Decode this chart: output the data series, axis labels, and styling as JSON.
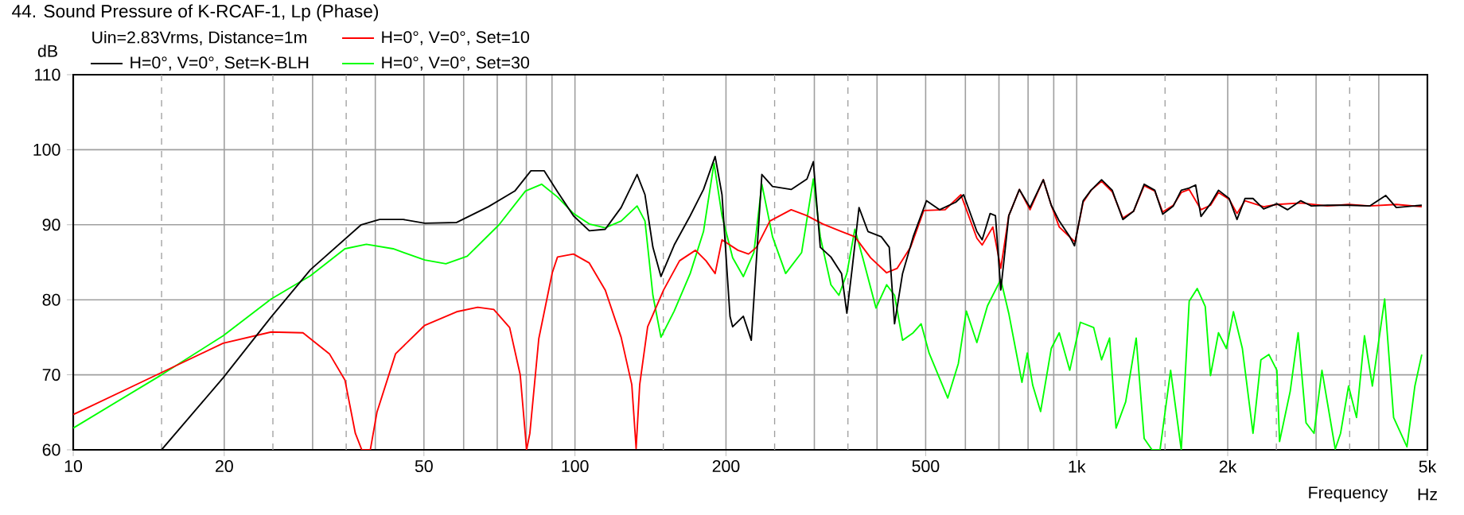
{
  "chart_data": {
    "type": "line",
    "title": "44. Sound Pressure of K-RCAF-1, Lp (Phase)",
    "xlabel": "Frequency",
    "ylabel": "dB",
    "legend_title": "Uin=2.83Vrms, Distance=1m",
    "annotations": [
      "Hz"
    ],
    "log": "x",
    "grid": true,
    "legend": "top left",
    "marker": "none",
    "line_style": "solid",
    "xlim": [
      10,
      5000
    ],
    "ylim": [
      60,
      110
    ],
    "xticks": [
      10,
      20,
      50,
      100,
      200,
      500,
      {
        "value": 1000,
        "label": "1k"
      },
      {
        "value": 2000,
        "label": "2k"
      },
      {
        "value": 5000,
        "label": "5k"
      }
    ],
    "yticks": [
      60,
      70,
      80,
      90,
      100,
      110
    ],
    "series": [
      {
        "name": "H=0°, V=0°, Set=K-BLH",
        "color": "#000000",
        "x": [
          10,
          15,
          19.9,
          24.8,
          29.7,
          37.5,
          40.8,
          45.5,
          50.2,
          58.1,
          67.2,
          75.9,
          81.7,
          86.8,
          92.3,
          99.3,
          106.8,
          114.9,
          123.6,
          133,
          137.9,
          143,
          148.4,
          157.7,
          169.7,
          180.4,
          190.3,
          196.4,
          203.7,
          206.2,
          216.6,
          224.6,
          230.1,
          235.8,
          247.6,
          269.7,
          290,
          298.6,
          308.3,
          323.7,
          339.9,
          348.3,
          356.9,
          368.3,
          383.8,
          407.9,
          423.1,
          433.5,
          449.7,
          472.2,
          501.9,
          533.3,
          573.8,
          595.2,
          632.5,
          648,
          672.2,
          688.8,
          705.9,
          732.2,
          768.8,
          807.2,
          857.9,
          889.8,
          923,
          968.7,
          990,
          1030,
          1068,
          1121,
          1177,
          1236,
          1298,
          1363,
          1431,
          1484,
          1558,
          1616,
          1676,
          1726,
          1769,
          1848,
          1917,
          2013,
          2087,
          2165,
          2246,
          2358,
          2506,
          2631,
          2796,
          2936,
          3158,
          3482,
          3838,
          4129,
          4335,
          4873
        ],
        "values": [
          60,
          60,
          69.6,
          77.7,
          84,
          90,
          90.7,
          90.7,
          90.2,
          90.3,
          92.4,
          94.5,
          97.2,
          97.2,
          94.4,
          91.2,
          89.2,
          89.4,
          92.3,
          96.7,
          94,
          87,
          83.1,
          87.3,
          91.2,
          94.7,
          99.1,
          94,
          77.8,
          76.4,
          77.8,
          74.6,
          85.6,
          96.7,
          95.1,
          94.7,
          96.1,
          98.4,
          87,
          85.7,
          83.5,
          78.2,
          84.2,
          92.3,
          89.1,
          88.4,
          87,
          76.8,
          83.5,
          88.4,
          93.2,
          92,
          93,
          94,
          89.1,
          88,
          91.5,
          91.2,
          81.3,
          91.2,
          94.7,
          92.3,
          96,
          92.6,
          90.5,
          88.4,
          87.2,
          93.2,
          94.6,
          96,
          94.6,
          90.7,
          91.8,
          95.4,
          94.6,
          91.4,
          92.5,
          94.6,
          94.9,
          95.3,
          91.1,
          92.8,
          94.6,
          93.5,
          90.7,
          93.5,
          93.5,
          92.1,
          92.8,
          92,
          93.2,
          92.5,
          92.6,
          92.6,
          92.5,
          93.9,
          92.3,
          92.6
        ]
      },
      {
        "name": "H=0°, V=0°, Set=10",
        "color": "#ff0000",
        "x": [
          10,
          15,
          19.9,
          24.8,
          28.7,
          32.4,
          34.8,
          36.5,
          37.6,
          39.1,
          40.3,
          43.9,
          50.2,
          58.1,
          64,
          68.9,
          74.1,
          77.8,
          80.1,
          81.3,
          84.7,
          90.1,
          92.3,
          99.3,
          106.8,
          114.9,
          123.6,
          129.8,
          132.4,
          134.6,
          139.6,
          150.2,
          161.6,
          173.9,
          182.5,
          190.3,
          196.4,
          211.3,
          221.8,
          230.1,
          244.6,
          269.7,
          290,
          312,
          339.9,
          361.3,
          388.5,
          418,
          438.8,
          466.5,
          495.7,
          546.7,
          587.9,
          632.5,
          648,
          680.5,
          705.9,
          732.2,
          768.8,
          807.2,
          857.9,
          889.8,
          923,
          992.7,
          1030,
          1068,
          1121,
          1177,
          1236,
          1298,
          1363,
          1431,
          1484,
          1558,
          1616,
          1676,
          1769,
          1848,
          1917,
          2013,
          2087,
          2165,
          2358,
          2506,
          2796,
          3158,
          3482,
          3838,
          4335,
          4873
        ],
        "values": [
          64.7,
          70.3,
          74.2,
          75.7,
          75.6,
          72.8,
          69.3,
          62.2,
          60,
          60,
          65,
          72.8,
          76.6,
          78.4,
          79,
          78.7,
          76.3,
          70,
          60,
          62.2,
          74.8,
          83.6,
          85.7,
          86.1,
          84.9,
          81.3,
          75,
          68.7,
          60.2,
          68.7,
          76.4,
          81.3,
          85.2,
          86.6,
          85.2,
          83.5,
          88,
          86.6,
          86.1,
          87,
          90.5,
          92,
          91.2,
          90.1,
          89.1,
          88.4,
          85.6,
          83.6,
          84.2,
          87,
          91.9,
          92,
          94,
          88.2,
          87.3,
          89.7,
          84.2,
          91.2,
          94.7,
          92,
          96,
          92.6,
          89.7,
          87.7,
          93,
          94.6,
          95.8,
          94.4,
          90.9,
          91.8,
          95.2,
          94.5,
          91.7,
          92.6,
          94.3,
          94.7,
          92,
          92.6,
          94.3,
          93.4,
          91.5,
          93.2,
          92.4,
          92.7,
          92.9,
          92.5,
          92.7,
          92.5,
          92.7,
          92.4
        ]
      },
      {
        "name": "H=0°, V=0°, Set=30",
        "color": "#00ff00",
        "x": [
          10,
          15,
          19.9,
          24.8,
          29.7,
          34.8,
          38.4,
          43.4,
          50.2,
          55.3,
          61,
          70.6,
          79.7,
          85.8,
          92.3,
          99.3,
          106.8,
          114.9,
          123.6,
          133,
          137.9,
          143,
          148.4,
          157.7,
          169.7,
          180.4,
          189.3,
          196.4,
          206.2,
          216.6,
          227.3,
          235.8,
          247.6,
          263,
          283,
          298.6,
          308.3,
          323.7,
          335.8,
          348.3,
          361.3,
          374.6,
          398.1,
          418,
          433.5,
          449.7,
          472.2,
          489.8,
          507.9,
          553.4,
          580.9,
          602.6,
          632.5,
          664.1,
          705.9,
          732.2,
          778,
          797.3,
          817.3,
          847.3,
          889.8,
          923,
          968.7,
          990,
          1017,
          1081,
          1121,
          1163,
          1198,
          1252,
          1314,
          1363,
          1413,
          1466,
          1539,
          1616,
          1676,
          1739,
          1804,
          1848,
          1917,
          1988,
          2053,
          2139,
          2246,
          2329,
          2416,
          2506,
          2537,
          2664,
          2763,
          2865,
          2972,
          3082,
          3276,
          3357,
          3482,
          3612,
          3746,
          3885,
          4110,
          4282,
          4552,
          4721,
          4873
        ],
        "values": [
          62.9,
          70,
          75.2,
          80.1,
          83.2,
          86.8,
          87.4,
          86.8,
          85.3,
          84.8,
          85.8,
          90,
          94.5,
          95.4,
          93.7,
          91.5,
          90.1,
          89.6,
          90.5,
          92.5,
          90.5,
          80.6,
          75,
          78.5,
          83.5,
          89.1,
          98.2,
          91.2,
          85.6,
          83.1,
          86.3,
          95.4,
          88.4,
          83.5,
          86.3,
          96.1,
          88.4,
          82,
          80.6,
          83.5,
          89.4,
          85.6,
          78.9,
          82,
          80.6,
          74.6,
          75.6,
          76.8,
          72.9,
          66.9,
          71.5,
          78.5,
          74.3,
          79.2,
          82.7,
          78.2,
          69,
          72.9,
          68.6,
          65.1,
          73.5,
          75.6,
          70.6,
          73.5,
          77,
          76.3,
          72,
          74.9,
          62.9,
          66.4,
          74.9,
          61.5,
          60,
          60,
          70.6,
          60,
          79.8,
          81.5,
          79.1,
          69.9,
          75.6,
          73.5,
          78.4,
          73.5,
          62.2,
          72,
          72.7,
          70.6,
          61.1,
          67.8,
          75.6,
          63.6,
          62.2,
          70.6,
          60.1,
          62.2,
          68.5,
          64.3,
          75.2,
          68.5,
          80.1,
          64.3,
          60.4,
          68.5,
          72.7
        ]
      }
    ]
  }
}
